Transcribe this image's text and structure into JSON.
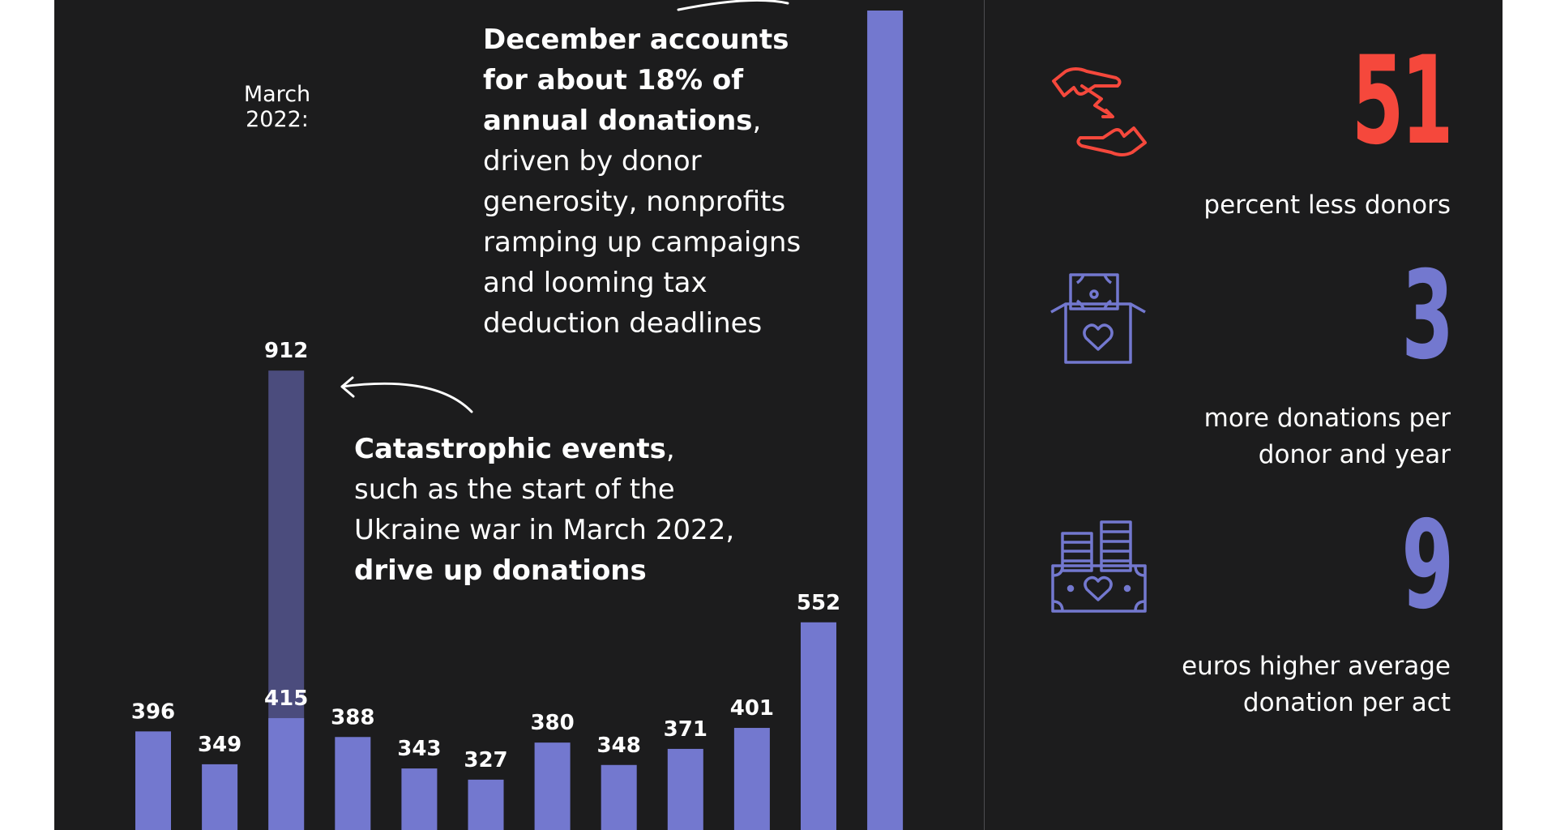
{
  "chart_data": {
    "type": "bar",
    "categories": [
      "",
      "",
      "",
      "",
      "",
      "",
      "",
      "",
      "",
      "",
      "",
      ""
    ],
    "values": [
      396,
      349,
      415,
      388,
      343,
      327,
      380,
      348,
      371,
      401,
      552,
      null
    ],
    "labels": [
      "396",
      "349",
      "415",
      "388",
      "343",
      "327",
      "380",
      "348",
      "371",
      "401",
      "552",
      ""
    ],
    "highlight": {
      "index": 2,
      "value": 912,
      "label": "912",
      "note": "March 2022:"
    },
    "bar_color": "#7378cf",
    "highlight_color": "#4b4c7d",
    "title": "",
    "xlabel": "",
    "ylabel": ""
  },
  "annotations": {
    "december": {
      "bold": "December accounts for about 18% of annual donations",
      "rest_1": ",",
      "rest_2": "driven by donor generosity, nonprofits ramping up campaigns and looming tax deduction deadlines"
    },
    "catastrophic": {
      "bold_1": "Catastrophic events",
      "text_1": ", such as the start of the Ukraine war in March 2022,",
      "bold_2": "drive up donations"
    }
  },
  "stats": [
    {
      "number": "51",
      "text": "percent less donors",
      "color": "#f5483c",
      "icon": "hands-giving-icon"
    },
    {
      "number": "3",
      "text": "more donations per donor and year",
      "color": "#7378cf",
      "icon": "donation-box-icon"
    },
    {
      "number": "9",
      "text": "euros higher average donation per act",
      "color": "#7378cf",
      "icon": "money-stack-icon"
    }
  ],
  "colors": {
    "background": "#1c1c1d",
    "accent_red": "#f5483c",
    "accent_purple": "#7378cf",
    "text": "#ffffff"
  }
}
